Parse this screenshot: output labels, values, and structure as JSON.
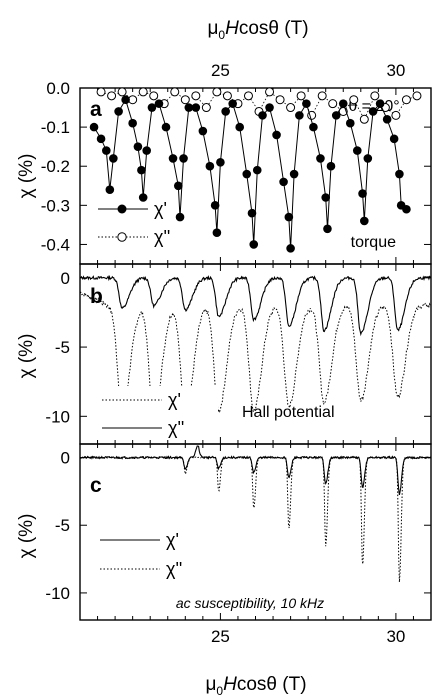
{
  "figure": {
    "top_axis_title": "μ0Hcosθ (T)",
    "bottom_axis_title": "μ0Hcosθ (T)",
    "top_ticks": [
      "25",
      "30"
    ],
    "bottom_ticks": [
      "25",
      "30"
    ]
  },
  "chart_data": [
    {
      "type": "scatter",
      "panel_label": "a",
      "xlabel": "μ0Hcosθ (T)",
      "ylabel": "χ (%)",
      "xlim": [
        21,
        31
      ],
      "ylim": [
        -0.45,
        0.0
      ],
      "yticks": [
        0.0,
        -0.1,
        -0.2,
        -0.3,
        -0.4
      ],
      "ytick_labels": [
        "0.0",
        "-0.1",
        "-0.2",
        "-0.3",
        "-0.4"
      ],
      "annotations": [
        "θ = 20°",
        "torque"
      ],
      "legend_position": "bottom-left",
      "dip_centers": [
        21.85,
        22.8,
        23.85,
        24.9,
        25.95,
        27.0,
        28.05,
        29.1,
        30.15
      ],
      "series": [
        {
          "name": "χ'",
          "marker": "filled-circle",
          "line": "solid",
          "x": [
            21.4,
            21.6,
            21.75,
            21.85,
            21.95,
            22.1,
            22.3,
            22.5,
            22.65,
            22.75,
            22.8,
            22.9,
            23.05,
            23.25,
            23.45,
            23.65,
            23.8,
            23.85,
            23.95,
            24.1,
            24.3,
            24.5,
            24.7,
            24.85,
            24.9,
            25.0,
            25.15,
            25.35,
            25.55,
            25.75,
            25.9,
            25.95,
            26.05,
            26.2,
            26.4,
            26.6,
            26.8,
            26.95,
            27.0,
            27.1,
            27.25,
            27.45,
            27.65,
            27.85,
            28.0,
            28.05,
            28.15,
            28.3,
            28.5,
            28.7,
            28.9,
            29.05,
            29.1,
            29.2,
            29.35,
            29.55,
            29.75,
            29.95,
            30.1,
            30.15,
            30.3
          ],
          "y": [
            -0.1,
            -0.13,
            -0.16,
            -0.26,
            -0.18,
            -0.06,
            -0.03,
            -0.09,
            -0.15,
            -0.21,
            -0.28,
            -0.16,
            -0.05,
            -0.04,
            -0.1,
            -0.18,
            -0.25,
            -0.33,
            -0.18,
            -0.05,
            -0.05,
            -0.11,
            -0.2,
            -0.3,
            -0.37,
            -0.19,
            -0.06,
            -0.04,
            -0.1,
            -0.22,
            -0.32,
            -0.4,
            -0.21,
            -0.07,
            -0.05,
            -0.12,
            -0.24,
            -0.33,
            -0.41,
            -0.22,
            -0.07,
            -0.04,
            -0.1,
            -0.18,
            -0.28,
            -0.36,
            -0.2,
            -0.07,
            -0.04,
            -0.09,
            -0.16,
            -0.27,
            -0.34,
            -0.18,
            -0.06,
            -0.04,
            -0.08,
            -0.13,
            -0.22,
            -0.3,
            -0.31
          ]
        },
        {
          "name": "χ''",
          "marker": "open-circle",
          "line": "dotted",
          "x": [
            21.6,
            21.9,
            22.2,
            22.5,
            22.8,
            23.1,
            23.4,
            23.7,
            24.0,
            24.3,
            24.6,
            24.9,
            25.2,
            25.5,
            25.8,
            26.1,
            26.4,
            26.7,
            27.0,
            27.3,
            27.6,
            27.9,
            28.2,
            28.5,
            28.8,
            29.1,
            29.4,
            29.7,
            30.0,
            30.3,
            30.6
          ],
          "y": [
            -0.01,
            -0.02,
            -0.01,
            -0.03,
            -0.01,
            -0.02,
            -0.04,
            -0.01,
            -0.03,
            -0.02,
            -0.05,
            -0.01,
            -0.02,
            -0.04,
            -0.02,
            -0.06,
            -0.01,
            -0.03,
            -0.05,
            -0.02,
            -0.07,
            -0.02,
            -0.04,
            -0.06,
            -0.03,
            -0.08,
            -0.02,
            -0.05,
            -0.07,
            -0.03,
            -0.02
          ]
        }
      ]
    },
    {
      "type": "line",
      "panel_label": "b",
      "xlabel": "μ0Hcosθ (T)",
      "ylabel": "χ (%)",
      "xlim": [
        21,
        31
      ],
      "ylim": [
        -12,
        1
      ],
      "yticks": [
        0,
        -5,
        -10
      ],
      "ytick_labels": [
        "0",
        "-5",
        "-10"
      ],
      "annotations": [
        "Hall potential"
      ],
      "legend_position": "bottom-left",
      "dip_centers": [
        22.2,
        23.1,
        24.0,
        24.95,
        25.95,
        26.95,
        27.95,
        29.0,
        30.05
      ],
      "dip_depths": [
        7.6,
        8.0,
        8.0,
        7.6,
        7.6,
        7.3,
        7.0,
        6.8,
        6.6
      ],
      "series": [
        {
          "name": "χ'",
          "line": "dotted",
          "base": -2.0,
          "depths": [
            7.6,
            8.0,
            8.0,
            7.6,
            7.6,
            7.3,
            7.0,
            6.8,
            6.6
          ]
        },
        {
          "name": "χ''",
          "line": "solid",
          "base": 0.0,
          "depths": [
            2.2,
            2.0,
            2.3,
            2.8,
            3.0,
            3.5,
            3.8,
            4.0,
            3.8
          ]
        }
      ]
    },
    {
      "type": "line",
      "panel_label": "c",
      "xlabel": "μ0Hcosθ (T)",
      "ylabel": "χ (%)",
      "xlim": [
        21,
        31
      ],
      "ylim": [
        -12,
        1
      ],
      "yticks": [
        0,
        -5,
        -10
      ],
      "ytick_labels": [
        "0",
        "-5",
        "-10"
      ],
      "annotations": [
        "ac susceptibility, 10 kHz"
      ],
      "legend_position": "middle-left",
      "dip_centers": [
        24.0,
        24.95,
        25.95,
        26.95,
        28.0,
        29.05,
        30.1
      ],
      "series": [
        {
          "name": "χ'",
          "line": "solid",
          "depths": [
            0.8,
            0.8,
            1.1,
            1.5,
            1.9,
            2.2,
            2.7
          ]
        },
        {
          "name": "χ''",
          "line": "dotted",
          "depths": [
            1.2,
            2.5,
            3.8,
            5.3,
            6.6,
            8.0,
            9.2
          ]
        }
      ]
    }
  ]
}
